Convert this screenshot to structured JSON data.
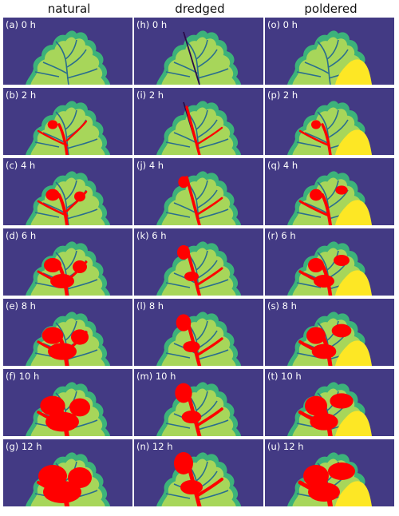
{
  "columns": [
    {
      "key": "natural",
      "title": "natural",
      "labels": [
        "(a) 0 h",
        "(b) 2 h",
        "(c) 4 h",
        "(d) 6 h",
        "(e) 8 h",
        "(f) 10 h",
        "(g) 12 h"
      ]
    },
    {
      "key": "dredged",
      "title": "dredged",
      "labels": [
        "(h) 0 h",
        "(i) 2 h",
        "(j) 4 h",
        "(k) 6 h",
        "(l) 8 h",
        "(m) 10 h",
        "(n) 12 h"
      ]
    },
    {
      "key": "poldered",
      "title": "poldered",
      "labels": [
        "(o) 0 h",
        "(p) 2 h",
        "(q) 4 h",
        "(r) 6 h",
        "(s) 8 h",
        "(t) 10 h",
        "(u) 12 h"
      ]
    }
  ],
  "colors": {
    "background": "#433a84",
    "delta_light": "#a7d65a",
    "delta_mid": "#3cb27a",
    "channel": "#2a6e8e",
    "flood": "#ff0000",
    "polder": "#fde725",
    "dredge": "#2b0c4a"
  }
}
